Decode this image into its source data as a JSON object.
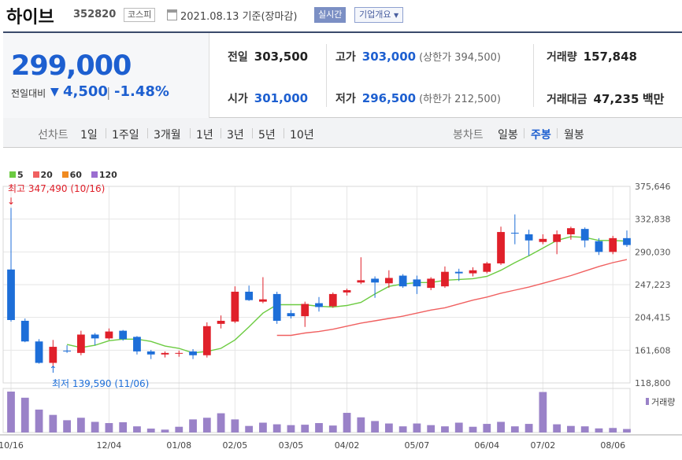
{
  "header": {
    "name": "하이브",
    "code": "352820",
    "market": "코스피",
    "date_label": "2021.08.13 기준(장마감)",
    "realtime_button": "실시간",
    "company_button": "기업개요"
  },
  "summary": {
    "current_price": "299,000",
    "change_label": "전일대비",
    "change_arrow": "▼",
    "change_value": "4,500",
    "change_sep": "|",
    "change_pct": "-1.48%"
  },
  "quote": {
    "prev_close": {
      "label": "전일",
      "value": "303,500"
    },
    "high": {
      "label": "고가",
      "value": "303,000",
      "sub": "(상한가 394,500)"
    },
    "volume": {
      "label": "거래량",
      "value": "157,848"
    },
    "open": {
      "label": "시가",
      "value": "301,000"
    },
    "low": {
      "label": "저가",
      "value": "296,500",
      "sub": "(하한가 212,500)"
    },
    "amount": {
      "label": "거래대금",
      "value": "47,235",
      "unit": "백만"
    }
  },
  "tabs": {
    "line_label": "선차트",
    "periods": [
      "1일",
      "1주일",
      "3개월",
      "1년",
      "3년",
      "5년",
      "10년"
    ],
    "candle_label": "봉차트",
    "candle_types": [
      "일봉",
      "주봉",
      "월봉"
    ],
    "candle_selected": 1
  },
  "colors": {
    "up": "#e0202a",
    "down": "#1d6ed8",
    "ma5": "#6ccb41",
    "ma20": "#f06060",
    "ma60": "#f08a20",
    "ma120": "#9b6ed0",
    "volume": "#9a82c8"
  },
  "chart_data": {
    "type": "candlestick",
    "title": "",
    "legend": [
      "5",
      "20",
      "60",
      "120"
    ],
    "y_ticks": [
      "375,646",
      "332,838",
      "290,030",
      "247,223",
      "204,415",
      "161,608",
      "118,800"
    ],
    "ylim": [
      118800,
      375646
    ],
    "x_ticks": [
      {
        "i": 0,
        "label": "10/16"
      },
      {
        "i": 7,
        "label": "12/04"
      },
      {
        "i": 12,
        "label": "01/08"
      },
      {
        "i": 16,
        "label": "02/05"
      },
      {
        "i": 20,
        "label": "03/05"
      },
      {
        "i": 24,
        "label": "04/02"
      },
      {
        "i": 29,
        "label": "05/07"
      },
      {
        "i": 34,
        "label": "06/04"
      },
      {
        "i": 38,
        "label": "07/02"
      },
      {
        "i": 43,
        "label": "08/06"
      }
    ],
    "high_annotation": "최고 347,490 (10/16)",
    "low_annotation": "최저 139,590 (11/06)",
    "volume_label": "거래량",
    "candles": [
      {
        "o": 267000,
        "h": 347490,
        "l": 199000,
        "c": 201000
      },
      {
        "o": 200000,
        "h": 203000,
        "l": 172000,
        "c": 173000
      },
      {
        "o": 173000,
        "h": 176000,
        "l": 144000,
        "c": 145000
      },
      {
        "o": 145000,
        "h": 175000,
        "l": 139590,
        "c": 166000
      },
      {
        "o": 161000,
        "h": 168000,
        "l": 158000,
        "c": 160000
      },
      {
        "o": 158000,
        "h": 187000,
        "l": 155000,
        "c": 182000
      },
      {
        "o": 182000,
        "h": 184000,
        "l": 168000,
        "c": 177000
      },
      {
        "o": 177000,
        "h": 190000,
        "l": 175000,
        "c": 186000
      },
      {
        "o": 187000,
        "h": 188000,
        "l": 174000,
        "c": 176000
      },
      {
        "o": 179000,
        "h": 180000,
        "l": 156000,
        "c": 160000
      },
      {
        "o": 160000,
        "h": 162000,
        "l": 150000,
        "c": 156000
      },
      {
        "o": 156000,
        "h": 160000,
        "l": 152000,
        "c": 158000
      },
      {
        "o": 157000,
        "h": 161000,
        "l": 153000,
        "c": 158000
      },
      {
        "o": 160000,
        "h": 163000,
        "l": 150000,
        "c": 155000
      },
      {
        "o": 155000,
        "h": 198000,
        "l": 152000,
        "c": 193000
      },
      {
        "o": 196000,
        "h": 207000,
        "l": 190000,
        "c": 200000
      },
      {
        "o": 199000,
        "h": 245000,
        "l": 197000,
        "c": 238000
      },
      {
        "o": 238000,
        "h": 246000,
        "l": 226000,
        "c": 227000
      },
      {
        "o": 225000,
        "h": 257000,
        "l": 223000,
        "c": 228000
      },
      {
        "o": 235000,
        "h": 238000,
        "l": 196000,
        "c": 200000
      },
      {
        "o": 210000,
        "h": 214000,
        "l": 203000,
        "c": 206000
      },
      {
        "o": 206000,
        "h": 225000,
        "l": 192000,
        "c": 222000
      },
      {
        "o": 223000,
        "h": 231000,
        "l": 212000,
        "c": 218000
      },
      {
        "o": 219000,
        "h": 237000,
        "l": 217000,
        "c": 235000
      },
      {
        "o": 237000,
        "h": 242000,
        "l": 233000,
        "c": 240000
      },
      {
        "o": 250000,
        "h": 283000,
        "l": 248000,
        "c": 253000
      },
      {
        "o": 255000,
        "h": 258000,
        "l": 230000,
        "c": 250000
      },
      {
        "o": 249000,
        "h": 266000,
        "l": 243000,
        "c": 256000
      },
      {
        "o": 259000,
        "h": 261000,
        "l": 243000,
        "c": 245000
      },
      {
        "o": 254000,
        "h": 259000,
        "l": 235000,
        "c": 245000
      },
      {
        "o": 243000,
        "h": 257000,
        "l": 240000,
        "c": 255000
      },
      {
        "o": 245000,
        "h": 271000,
        "l": 243000,
        "c": 264000
      },
      {
        "o": 264000,
        "h": 268000,
        "l": 252000,
        "c": 262000
      },
      {
        "o": 262000,
        "h": 270000,
        "l": 258000,
        "c": 266000
      },
      {
        "o": 264000,
        "h": 277000,
        "l": 262000,
        "c": 275000
      },
      {
        "o": 275000,
        "h": 323000,
        "l": 273000,
        "c": 316000
      },
      {
        "o": 315000,
        "h": 339000,
        "l": 300000,
        "c": 314000
      },
      {
        "o": 313000,
        "h": 319000,
        "l": 285000,
        "c": 305000
      },
      {
        "o": 303000,
        "h": 313000,
        "l": 300000,
        "c": 307000
      },
      {
        "o": 303000,
        "h": 318000,
        "l": 287000,
        "c": 313000
      },
      {
        "o": 313000,
        "h": 323000,
        "l": 306000,
        "c": 321000
      },
      {
        "o": 320000,
        "h": 322000,
        "l": 296000,
        "c": 305000
      },
      {
        "o": 304000,
        "h": 308000,
        "l": 286000,
        "c": 290000
      },
      {
        "o": 290000,
        "h": 311000,
        "l": 287000,
        "c": 308000
      },
      {
        "o": 308000,
        "h": 318000,
        "l": 296500,
        "c": 299000
      }
    ],
    "ma5": [
      null,
      null,
      null,
      null,
      169000,
      165000,
      168000,
      174000,
      176000,
      176000,
      173000,
      167000,
      164000,
      158000,
      160000,
      164000,
      175000,
      192000,
      210000,
      221000,
      221000,
      221000,
      219000,
      218000,
      220000,
      224000,
      235000,
      245000,
      248000,
      250000,
      250000,
      253000,
      254000,
      255000,
      258000,
      266000,
      276000,
      285000,
      295000,
      305000,
      310000,
      309000,
      305000,
      305000,
      304000
    ],
    "ma20": [
      null,
      null,
      null,
      null,
      null,
      null,
      null,
      null,
      null,
      null,
      null,
      null,
      null,
      null,
      null,
      null,
      null,
      null,
      null,
      181000,
      181000,
      184000,
      186000,
      189000,
      193000,
      197000,
      200000,
      203000,
      206000,
      210000,
      214000,
      217000,
      222000,
      227000,
      231000,
      236000,
      240000,
      244000,
      249000,
      254000,
      259000,
      265000,
      271000,
      276000,
      280000
    ],
    "volume": [
      1000,
      850,
      560,
      430,
      300,
      360,
      260,
      230,
      250,
      150,
      95,
      70,
      140,
      320,
      360,
      470,
      320,
      160,
      240,
      200,
      180,
      190,
      230,
      170,
      480,
      370,
      280,
      220,
      150,
      220,
      180,
      150,
      240,
      140,
      210,
      260,
      150,
      210,
      990,
      200,
      160,
      150,
      100,
      110,
      85
    ]
  }
}
